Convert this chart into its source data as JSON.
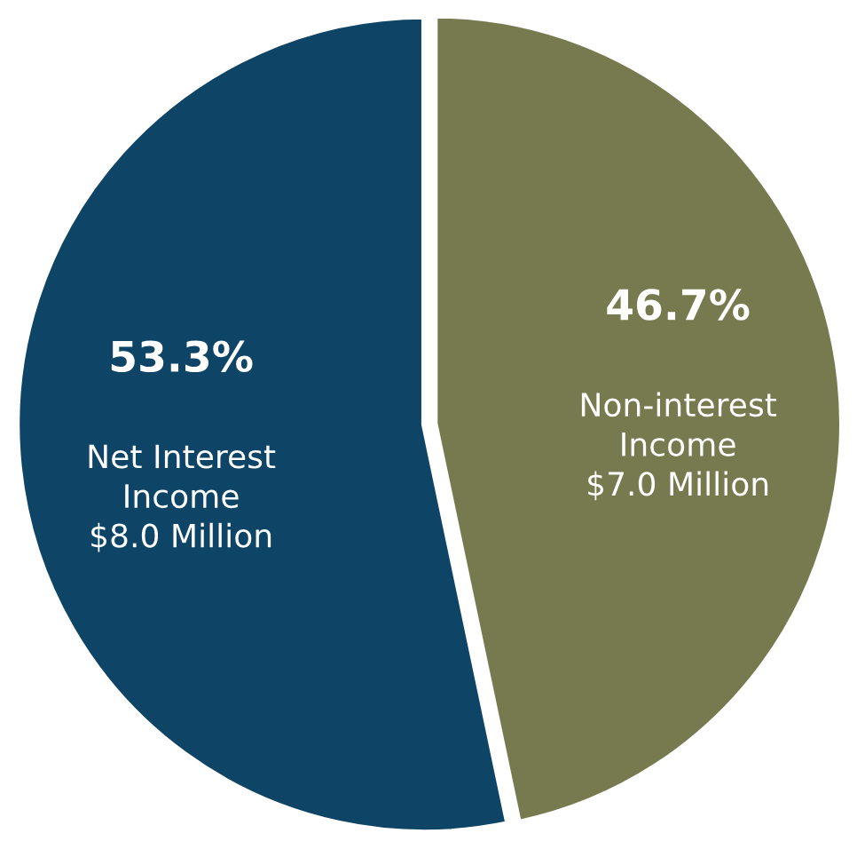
{
  "chart_data": {
    "type": "pie",
    "categories": [
      "Net Interest\nIncome",
      "Non-interest\nIncome"
    ],
    "values": [
      53.3,
      46.7
    ],
    "colors": [
      "#0e4465",
      "#777a4f"
    ],
    "value_labels": [
      "53.3%",
      "46.7%"
    ],
    "annotations": [
      {
        "text": "$8.0 Million",
        "x": "Net Interest\nIncome"
      },
      {
        "text": "$7.0 Million",
        "x": "Non-interest\nIncome"
      }
    ],
    "legend": false
  }
}
